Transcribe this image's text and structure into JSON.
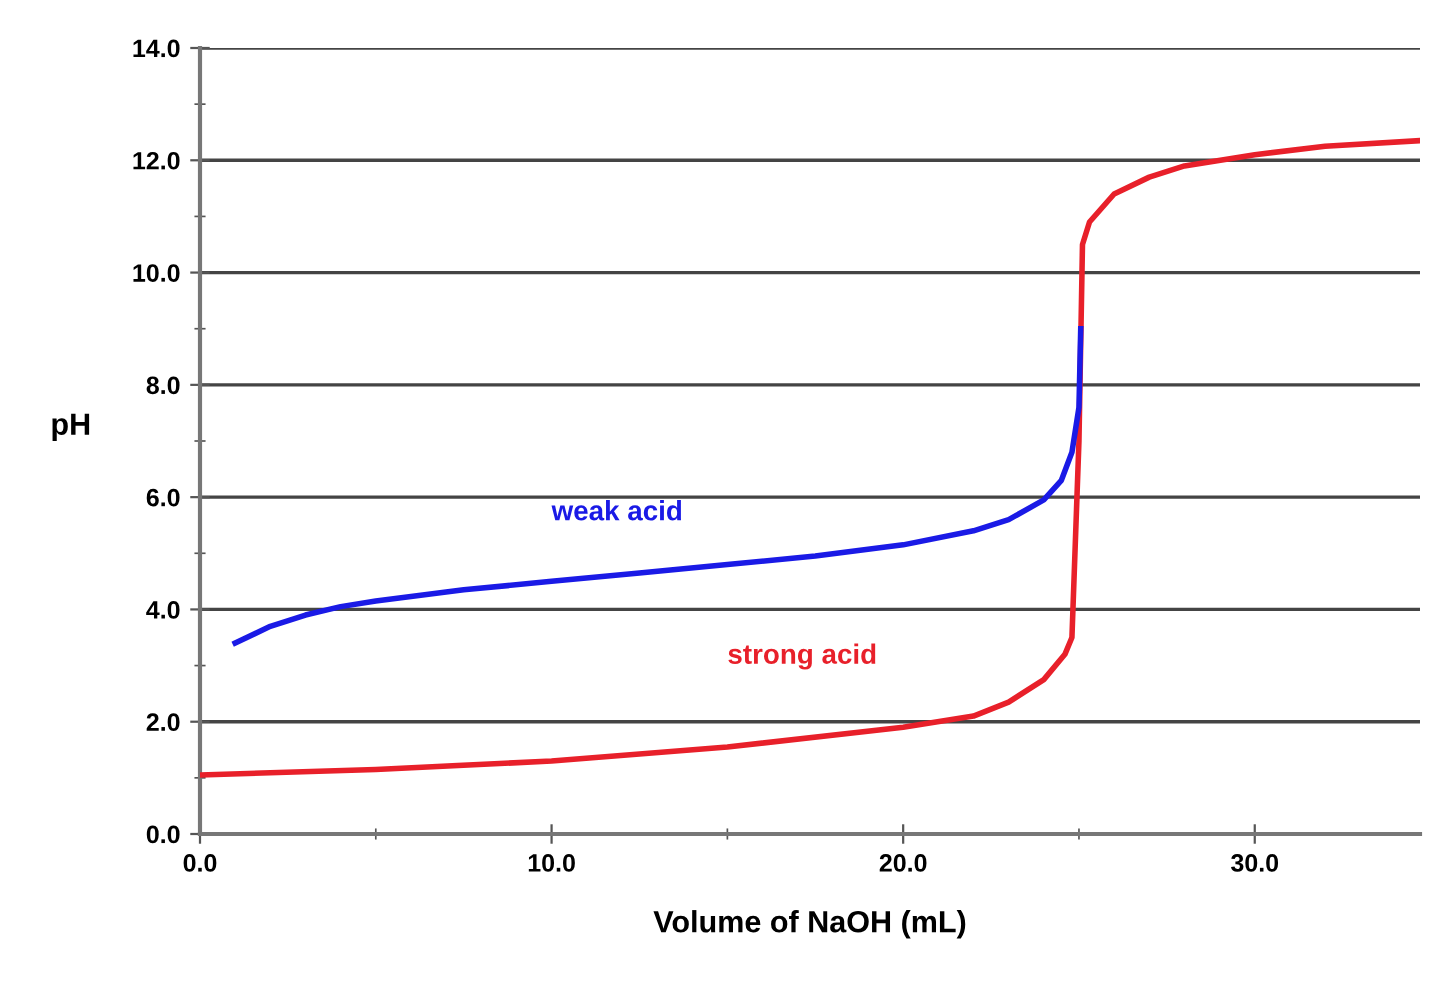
{
  "chart_data": {
    "type": "line",
    "xlabel": "Volume of NaOH (mL)",
    "ylabel": "pH",
    "series": [
      {
        "name": "weak acid",
        "color": "#1a1ae6",
        "x": [
          1,
          2,
          3,
          4,
          5,
          7.5,
          10,
          12.5,
          15,
          17.5,
          20,
          22,
          23,
          24,
          24.5,
          24.8,
          25,
          25.05
        ],
        "values": [
          3.4,
          3.7,
          3.9,
          4.05,
          4.15,
          4.35,
          4.5,
          4.65,
          4.8,
          4.95,
          5.15,
          5.4,
          5.6,
          5.95,
          6.3,
          6.8,
          7.6,
          9.0
        ]
      },
      {
        "name": "strong acid",
        "color": "#e8202a",
        "x": [
          0,
          5,
          10,
          15,
          20,
          22,
          23,
          24,
          24.6,
          24.8,
          25,
          25.1,
          25.3,
          26,
          27,
          28,
          30,
          32,
          34.7
        ],
        "values": [
          1.05,
          1.15,
          1.3,
          1.55,
          1.9,
          2.1,
          2.35,
          2.75,
          3.2,
          3.5,
          7.0,
          10.5,
          10.9,
          11.4,
          11.7,
          11.9,
          12.1,
          12.25,
          12.35
        ]
      }
    ],
    "xlim": [
      0,
      34.7
    ],
    "ylim": [
      0,
      14
    ],
    "xticks": [
      {
        "value": 0,
        "label": "0.0"
      },
      {
        "value": 10,
        "label": "10.0"
      },
      {
        "value": 20,
        "label": "20.0"
      },
      {
        "value": 30,
        "label": "30.0"
      }
    ],
    "yticks": [
      {
        "value": 0,
        "label": "0.0"
      },
      {
        "value": 2,
        "label": "2.0"
      },
      {
        "value": 4,
        "label": "4.0"
      },
      {
        "value": 6,
        "label": "6.0"
      },
      {
        "value": 8,
        "label": "8.0"
      },
      {
        "value": 10,
        "label": "10.0"
      },
      {
        "value": 12,
        "label": "12.0"
      },
      {
        "value": 14,
        "label": "14.0"
      }
    ],
    "grid": "y",
    "marker": "none",
    "line_style": "solid"
  }
}
